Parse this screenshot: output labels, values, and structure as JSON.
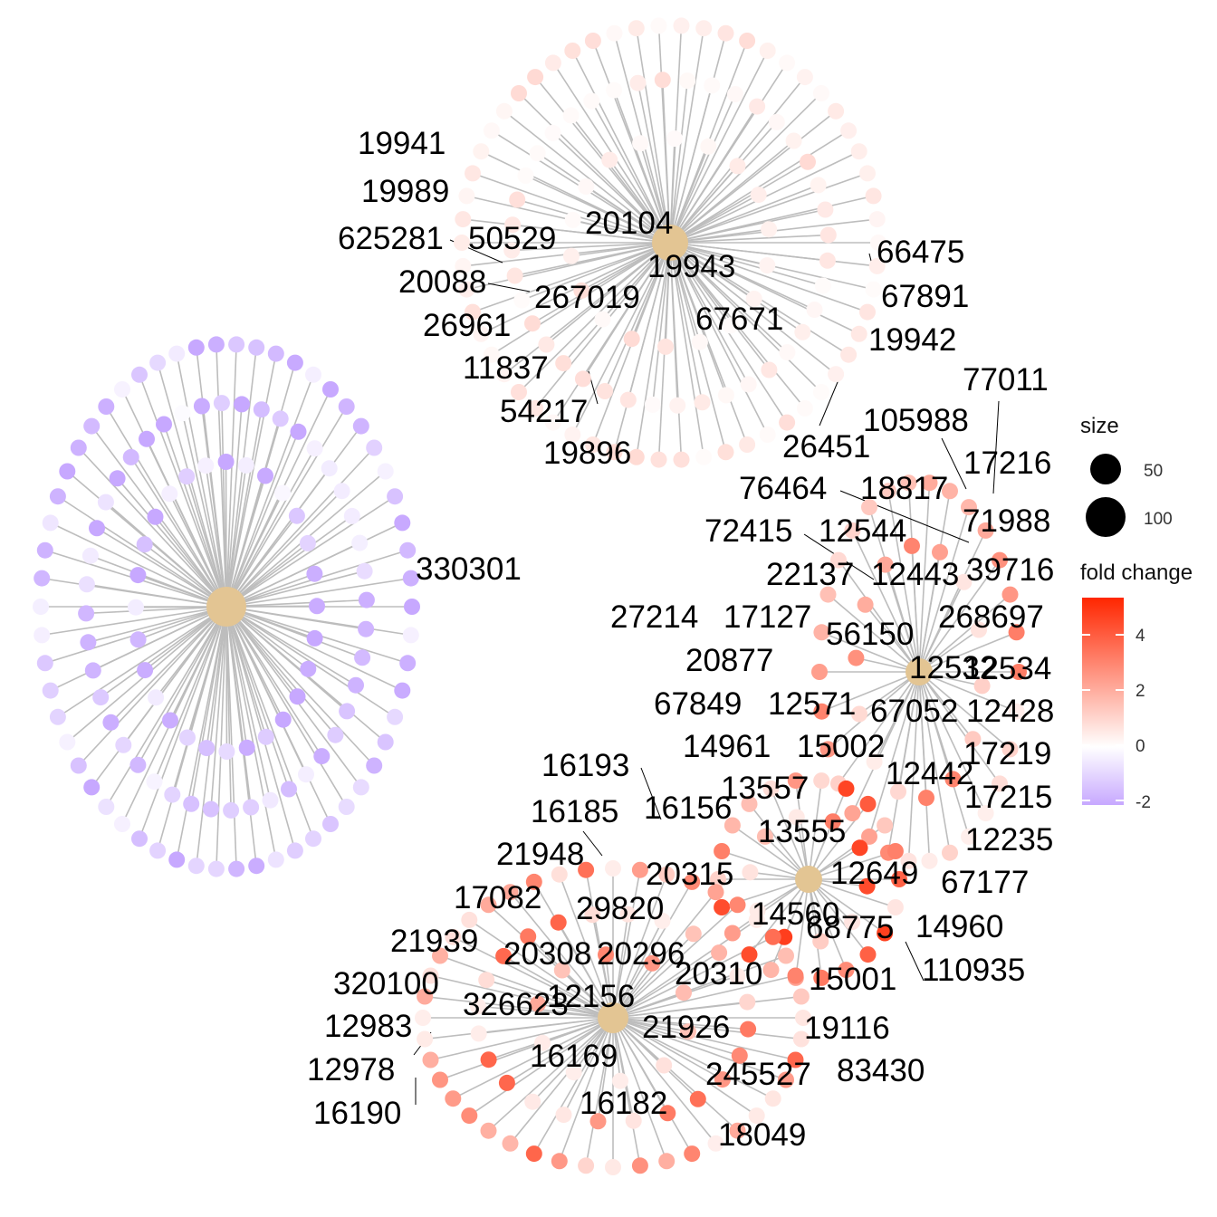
{
  "colors": {
    "edge": "#bdbdbd",
    "hub": "#e3c593",
    "high": "#ff2600",
    "mid": "#ffffff",
    "low": "#c7a8ff"
  },
  "legend": {
    "size_title": "size",
    "size_labels": [
      "50",
      "100"
    ],
    "color_title": "fold change",
    "color_labels": [
      "4",
      "2",
      "0",
      "-2"
    ],
    "color_range": [
      -2.2,
      5.3
    ]
  },
  "clusters": [
    {
      "id": "purple",
      "fc_range": [
        -2.3,
        -0.1
      ],
      "labels": [
        "330301"
      ]
    },
    {
      "id": "top",
      "hub_label": "20104",
      "fc_range": [
        0.1,
        0.9
      ],
      "labels": [
        "19941",
        "19989",
        "625281",
        "50529",
        "20088",
        "26961",
        "11837",
        "54217",
        "19896",
        "19943",
        "267019",
        "67671",
        "66475",
        "67891",
        "19942",
        "26451"
      ]
    },
    {
      "id": "right",
      "hub_label": "12532",
      "fc_range": [
        0.4,
        3.2
      ],
      "labels": [
        "77011",
        "105988",
        "17216",
        "76464",
        "18817",
        "71988",
        "72415",
        "12544",
        "22137",
        "12443",
        "39716",
        "27214",
        "17127",
        "268697",
        "56150",
        "12534",
        "20877",
        "67849",
        "12571",
        "67052",
        "12428",
        "14961",
        "15002",
        "17219",
        "12442",
        "13557",
        "17215",
        "13555",
        "12235",
        "67177"
      ]
    },
    {
      "id": "middle",
      "hub_label": "12649",
      "fc_range": [
        0.5,
        5.3
      ],
      "labels": [
        "16193",
        "16156",
        "16185",
        "21948",
        "20315",
        "14560",
        "68775",
        "14960",
        "110935",
        "15001",
        "20310",
        "19116",
        "83430",
        "245527"
      ]
    },
    {
      "id": "bottom",
      "hub_label": "12156",
      "fc_range": [
        0.4,
        4.0
      ],
      "labels": [
        "17082",
        "29820",
        "21939",
        "20308",
        "20296",
        "320100",
        "326623",
        "12983",
        "12978",
        "16190",
        "21926",
        "16169",
        "16182",
        "18049"
      ]
    }
  ]
}
